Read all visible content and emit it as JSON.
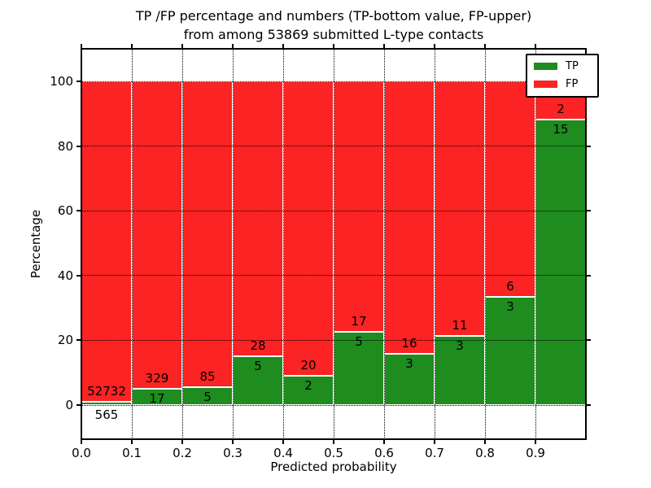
{
  "title": {
    "line1": "TP /FP percentage and numbers (TP-bottom value, FP-upper)",
    "line2": "from among 53869 submitted L-type contacts"
  },
  "chart_data": {
    "type": "bar",
    "stacked": true,
    "normalized_to_percent": true,
    "title": "TP /FP percentage and numbers (TP-bottom value, FP-upper) from among 53869 submitted L-type contacts",
    "xlabel": "Predicted probability",
    "ylabel": "Percentage",
    "total_contacts": 53869,
    "categories": [
      "0.0-0.1",
      "0.1-0.2",
      "0.2-0.3",
      "0.3-0.4",
      "0.4-0.5",
      "0.5-0.6",
      "0.6-0.7",
      "0.7-0.8",
      "0.8-0.9",
      "0.9-1.0"
    ],
    "series": [
      {
        "name": "TP",
        "color": "#1e8c1e",
        "values": [
          565,
          17,
          5,
          5,
          2,
          5,
          3,
          3,
          3,
          15
        ]
      },
      {
        "name": "FP",
        "color": "#fb2323",
        "values": [
          52732,
          329,
          85,
          28,
          20,
          17,
          16,
          11,
          6,
          2
        ]
      }
    ],
    "tp_percent_per_bin": [
      1.06,
      4.91,
      5.56,
      15.15,
      9.09,
      22.73,
      15.79,
      21.43,
      33.33,
      88.24
    ],
    "xtick_labels": [
      "0.0",
      "0.1",
      "0.2",
      "0.3",
      "0.4",
      "0.5",
      "0.6",
      "0.7",
      "0.8",
      "0.9"
    ],
    "ytick_labels": [
      "0",
      "20",
      "40",
      "60",
      "80",
      "100"
    ],
    "yticks": [
      0,
      20,
      40,
      60,
      80,
      100
    ],
    "xlim": [
      0.0,
      1.0
    ],
    "ylim": [
      -10.55,
      110.05
    ],
    "grid": "dotted black, drawn above bars",
    "bar_edge_color": "#ffffff",
    "legend": {
      "position": "upper right",
      "entries": [
        "TP",
        "FP"
      ]
    },
    "text_color": "#000000"
  }
}
